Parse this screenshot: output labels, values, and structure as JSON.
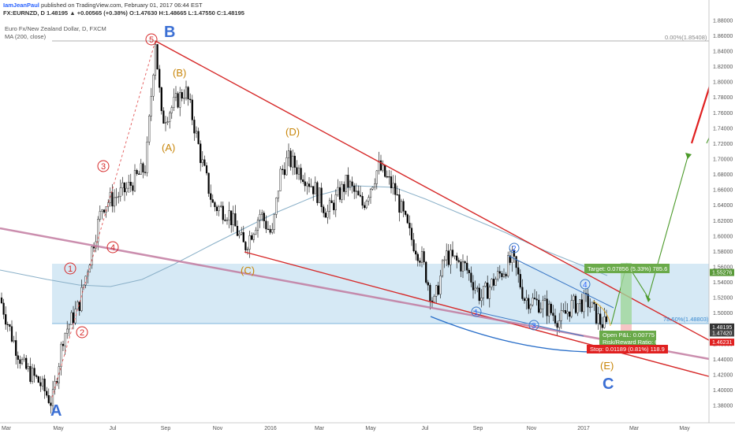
{
  "header": {
    "author": "IamJeanPaul",
    "published": "published on TradingView.com, February 01, 2017 06:44 EST",
    "symbol_line": "FX:EURNZD, D 1.48195 ▲ +0.00565 (+0.38%) O:1.47630 H:1.48665 L:1.47550 C:1.48195"
  },
  "legend": {
    "instrument": "Euro Fx/New Zealand Dollar, D, FXCM",
    "indicator": "MA (200, close)"
  },
  "colors": {
    "up": "#26a69a",
    "candle": "#000000",
    "trendline": "#d62828",
    "support_line": "#c27ba0",
    "zone": "#cfe5f3",
    "ma": "#8ab0c8",
    "target": "#4c9a2a",
    "stop": "#e02020"
  },
  "chart_data": {
    "type": "line",
    "title": "",
    "xlabel": "",
    "ylabel": "",
    "x_ticks": [
      "Mar",
      "May",
      "Jul",
      "Sep",
      "Nov",
      "2016",
      "Mar",
      "May",
      "Jul",
      "Sep",
      "Nov",
      "2017",
      "Mar",
      "May"
    ],
    "y_ticks": [
      "1.88000",
      "1.86000",
      "1.84000",
      "1.82000",
      "1.80000",
      "1.78000",
      "1.76000",
      "1.74000",
      "1.72000",
      "1.70000",
      "1.68000",
      "1.66000",
      "1.64000",
      "1.62000",
      "1.60000",
      "1.58000",
      "1.56000",
      "1.54000",
      "1.52000",
      "1.50000",
      "1.48000",
      "1.46000",
      "1.44000",
      "1.42000",
      "1.40000",
      "1.38000"
    ],
    "ylim": [
      1.372,
      1.888
    ],
    "series": [
      {
        "x": [
          "2015-03",
          "2015-04",
          "2015-05",
          "2015-06",
          "2015-07",
          "2015-08",
          "2015-08-24",
          "2015-09",
          "2015-10",
          "2015-11",
          "2015-11-25",
          "2015-12",
          "2016-01",
          "2016-02",
          "2016-03",
          "2016-04",
          "2016-05",
          "2016-06",
          "2016-07",
          "2016-08",
          "2016-09",
          "2016-10",
          "2016-11",
          "2016-12",
          "2017-01",
          "2017-02"
        ],
        "values": [
          1.52,
          1.44,
          1.38,
          1.48,
          1.66,
          1.7,
          1.855,
          1.76,
          1.66,
          1.61,
          1.58,
          1.64,
          1.7,
          1.67,
          1.66,
          1.67,
          1.68,
          1.63,
          1.51,
          1.58,
          1.56,
          1.55,
          1.47,
          1.51,
          1.5,
          1.482
        ]
      }
    ],
    "fib_levels": [
      {
        "label": "0.00%(1.85408)",
        "value": 1.85408
      },
      {
        "label": "78.60%(1.48803)",
        "value": 1.48803
      }
    ],
    "price_tags": [
      {
        "label": "1.55276",
        "value": 1.55276
      },
      {
        "label": "1.48195",
        "value": 1.48195
      },
      {
        "label": "1.47420",
        "value": 1.4742
      },
      {
        "label": "1.46231",
        "value": 1.46231
      }
    ],
    "trade": {
      "target": "Target: 0.07856 (5.33%) 785.6",
      "open_pnl": "Open P&L: 0.00775",
      "risk_reward": "Risk/Reward Ratio: 6.61",
      "stop": "Stop: 0.01189 (0.81%) 118.9"
    },
    "annotations": {
      "A": "A",
      "B": "B",
      "C": "C",
      "wA": "(A)",
      "wB": "(B)",
      "wC": "(C)",
      "wD": "(D)",
      "wE": "(E)",
      "n1": "1",
      "n2": "2",
      "n3": "3",
      "n4": "4",
      "n5": "5",
      "m1": "1",
      "m2": "2",
      "m3": "3",
      "m4": "4"
    }
  }
}
